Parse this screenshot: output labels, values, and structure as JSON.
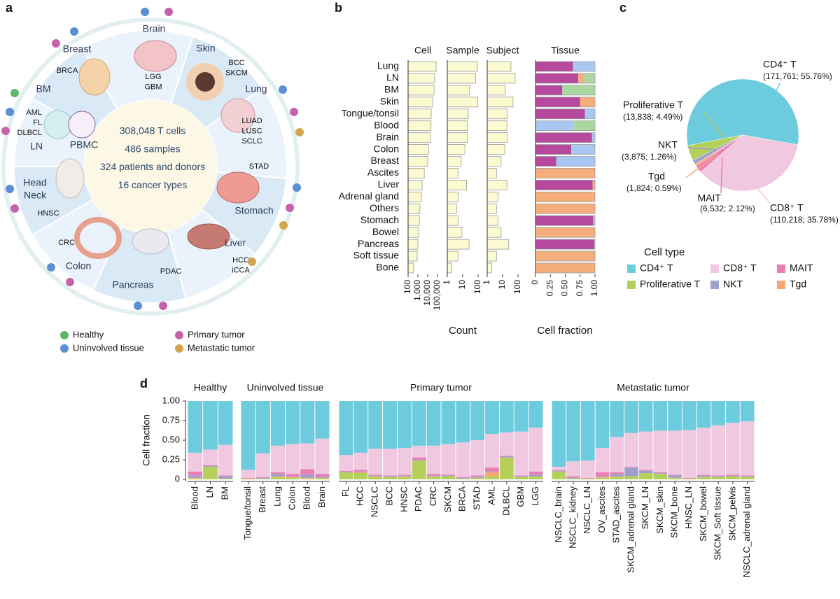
{
  "panel_a": {
    "panel_label": "a",
    "center_text": [
      "308,048 T cells",
      "486 samples",
      "324 patients and donors",
      "16 cancer types"
    ],
    "organs": [
      {
        "labels": [
          "Brain"
        ],
        "subtypes": [
          "LGG",
          "GBM"
        ]
      },
      {
        "labels": [
          "Skin"
        ],
        "subtypes": [
          "BCC",
          "SKCM"
        ]
      },
      {
        "labels": [
          "Lung"
        ],
        "subtypes": [
          "LUAD",
          "LUSC",
          "SCLC"
        ]
      },
      {
        "labels": [
          "Stomach"
        ],
        "subtypes": [
          "STAD"
        ]
      },
      {
        "labels": [
          "Liver"
        ],
        "subtypes": [
          "HCC",
          "iCCA"
        ]
      },
      {
        "labels": [
          "Pancreas"
        ],
        "subtypes": [
          "PDAC"
        ]
      },
      {
        "labels": [
          "Colon"
        ],
        "subtypes": [
          "CRC"
        ]
      },
      {
        "labels": [
          "Head",
          "Neck"
        ],
        "subtypes": [
          "HNSC"
        ]
      },
      {
        "labels": [
          "BM",
          "LN",
          "PBMC"
        ],
        "subtypes": [
          "AML",
          "FL",
          "DLBCL"
        ]
      },
      {
        "labels": [
          "Breast"
        ],
        "subtypes": [
          "BRCA"
        ]
      }
    ],
    "legend": [
      {
        "name": "Healthy",
        "color": "#5fb56a"
      },
      {
        "name": "Uninvolved tissue",
        "color": "#5b8fd4"
      },
      {
        "name": "Primary tumor",
        "color": "#c462ac"
      },
      {
        "name": "Metastatic tumor",
        "color": "#d3a550"
      }
    ]
  },
  "chart_data": [
    {
      "type": "bar",
      "panel_label": "b",
      "title": "Cell",
      "xscale": "log",
      "color": "#fcfad0",
      "categories": [
        "Lung",
        "LN",
        "BM",
        "Skin",
        "Tongue/tonsil",
        "Blood",
        "Brain",
        "Colon",
        "Breast",
        "Ascites",
        "Liver",
        "Adrenal gland",
        "Others",
        "Stomach",
        "Bowel",
        "Pancreas",
        "Soft tissue",
        "Bone"
      ],
      "values": [
        72000,
        52000,
        45000,
        32000,
        23000,
        22000,
        19000,
        12000,
        10000,
        4500,
        2700,
        2300,
        1600,
        1400,
        1200,
        1000,
        850,
        370
      ],
      "xlim": [
        100,
        100000
      ],
      "xticks": [
        100,
        {
          "value": 1000,
          "label": "1,000"
        },
        {
          "value": 10000,
          "label": "10,000"
        },
        {
          "value": 100000,
          "label": "100,000"
        }
      ]
    },
    {
      "type": "bar",
      "title": "Sample",
      "xscale": "log",
      "color": "#fcfad0",
      "xlabel": "Count",
      "values": [
        90,
        70,
        28,
        95,
        23,
        20,
        20,
        14,
        8,
        5,
        18,
        5,
        4,
        5,
        9,
        26,
        5,
        2
      ],
      "xlim": [
        1,
        100
      ],
      "xticks": [
        1,
        10,
        100
      ]
    },
    {
      "type": "bar",
      "title": "Subject",
      "xscale": "log",
      "color": "#fcfad0",
      "values": [
        35,
        65,
        15,
        48,
        20,
        19,
        20,
        14,
        8,
        4,
        19,
        5,
        4,
        5,
        8,
        25,
        4,
        2
      ],
      "xlim": [
        1,
        100
      ],
      "xticks": [
        1,
        10,
        100
      ]
    },
    {
      "type": "stacked_bar",
      "title": "Tissue",
      "xlabel": "Cell fraction",
      "xlim": [
        0,
        1
      ],
      "xticks": [
        0,
        0.25,
        {
          "value": 0.5,
          "label": "0.50"
        },
        0.75,
        {
          "value": 1,
          "label": "1.00"
        }
      ],
      "series": [
        {
          "color": "#b6489d",
          "values": [
            0.63,
            0.72,
            0.45,
            0.75,
            0.83,
            0,
            0.95,
            0.6,
            0.35,
            0,
            0.96,
            0,
            0,
            0.97,
            0,
            0.99,
            0,
            0
          ]
        },
        {
          "color": "#f5ae7b",
          "values": [
            0,
            0.1,
            0,
            0.25,
            0,
            0,
            0,
            0,
            0,
            1,
            0.04,
            1,
            1,
            0,
            1,
            0,
            1,
            1
          ]
        },
        {
          "color": "#a8c8f2",
          "values": [
            0.37,
            0,
            0,
            0,
            0.17,
            0.65,
            0.05,
            0.4,
            0.65,
            0,
            0,
            0,
            0,
            0.03,
            0,
            0.01,
            0,
            0
          ]
        },
        {
          "color": "#a9d9a1",
          "values": [
            0,
            0.18,
            0.55,
            0,
            0,
            0.35,
            0,
            0,
            0,
            0,
            0,
            0,
            0,
            0,
            0,
            0,
            0,
            0
          ]
        }
      ]
    },
    {
      "type": "pie",
      "panel_label": "c",
      "legend_title": "Cell type",
      "categories": [
        "CD4⁺ T",
        "CD8⁺ T",
        "MAIT",
        "Tgd",
        "NKT",
        "Proliferative T"
      ],
      "values": [
        55.76,
        35.78,
        2.12,
        0.59,
        1.26,
        4.49
      ],
      "value_labels": [
        "(171,761; 55.76%)",
        "(110,218; 35.78%)",
        "(6,532; 2.12%)",
        "(1,824; 0.59%)",
        "(3,875; 1.26%)",
        "(13,838; 4.49%)"
      ],
      "colors": [
        "#6ccbdc",
        "#f0c8e0",
        "#e97fb3",
        "#f7a871",
        "#9f9fcc",
        "#b5d05a"
      ]
    },
    {
      "type": "stacked_column",
      "panel_label": "d",
      "title": "Healthy",
      "ylabel": "Cell fraction",
      "ylim": [
        0,
        1
      ],
      "yticks": [
        0,
        0.25,
        {
          "value": 0.5,
          "label": "0.50"
        },
        0.75,
        {
          "value": 1,
          "label": "1.00"
        }
      ],
      "categories": [
        "Blood",
        "LN",
        "BM"
      ],
      "series": [
        {
          "color": "#b5d05a",
          "values": [
            0.01,
            0.16,
            0.01
          ]
        },
        {
          "color": "#f7a871",
          "values": [
            0.01,
            0,
            0
          ]
        },
        {
          "color": "#9f9fcc",
          "values": [
            0.03,
            0.01,
            0.03
          ]
        },
        {
          "color": "#e97fb3",
          "values": [
            0.05,
            0.01,
            0.01
          ]
        },
        {
          "color": "#f0c8e0",
          "values": [
            0.24,
            0.2,
            0.39
          ]
        },
        {
          "color": "#6ccbdc",
          "values": [
            0.66,
            0.62,
            0.56
          ]
        }
      ]
    },
    {
      "type": "stacked_column",
      "title": "Uninvolved tissue",
      "ylim": [
        0,
        1
      ],
      "categories": [
        "Tongue/tonsil",
        "Breast",
        "Lung",
        "Colon",
        "Blood",
        "Brain"
      ],
      "series": [
        {
          "color": "#b5d05a",
          "values": [
            0.01,
            0.01,
            0.03,
            0.02,
            0.01,
            0.02
          ]
        },
        {
          "color": "#f7a871",
          "values": [
            0,
            0,
            0.01,
            0.01,
            0.01,
            0
          ]
        },
        {
          "color": "#9f9fcc",
          "values": [
            0,
            0.01,
            0.03,
            0.01,
            0.04,
            0.01
          ]
        },
        {
          "color": "#e97fb3",
          "values": [
            0.01,
            0.01,
            0.02,
            0.03,
            0.07,
            0.04
          ]
        },
        {
          "color": "#f0c8e0",
          "values": [
            0.1,
            0.3,
            0.34,
            0.38,
            0.33,
            0.45
          ]
        },
        {
          "color": "#6ccbdc",
          "values": [
            0.88,
            0.67,
            0.57,
            0.55,
            0.54,
            0.48
          ]
        }
      ]
    },
    {
      "type": "stacked_column",
      "title": "Primary tumor",
      "ylim": [
        0,
        1
      ],
      "categories": [
        "FL",
        "HCC",
        "NSCLC",
        "BCC",
        "HNSC",
        "PDAC",
        "CRC",
        "SKCM",
        "BRCA",
        "STAD",
        "AML",
        "DLBCL",
        "GBM",
        "LGG"
      ],
      "series": [
        {
          "color": "#b5d05a",
          "values": [
            0.09,
            0.08,
            0.03,
            0.03,
            0.03,
            0.24,
            0.03,
            0.04,
            0.01,
            0.02,
            0.04,
            0.28,
            0.03,
            0.04
          ]
        },
        {
          "color": "#f7a871",
          "values": [
            0,
            0.01,
            0.01,
            0,
            0.01,
            0,
            0.01,
            0,
            0,
            0,
            0.05,
            0,
            0,
            0
          ]
        },
        {
          "color": "#9f9fcc",
          "values": [
            0.01,
            0.01,
            0.01,
            0.01,
            0.01,
            0.01,
            0.01,
            0.01,
            0.01,
            0.01,
            0.01,
            0.01,
            0.01,
            0.02
          ]
        },
        {
          "color": "#e97fb3",
          "values": [
            0.01,
            0.02,
            0.01,
            0.01,
            0.01,
            0.03,
            0.02,
            0.01,
            0.01,
            0.02,
            0.05,
            0.01,
            0.01,
            0.04
          ]
        },
        {
          "color": "#f0c8e0",
          "values": [
            0.2,
            0.22,
            0.33,
            0.34,
            0.34,
            0.15,
            0.36,
            0.39,
            0.44,
            0.45,
            0.43,
            0.3,
            0.56,
            0.56
          ]
        },
        {
          "color": "#6ccbdc",
          "values": [
            0.69,
            0.66,
            0.61,
            0.61,
            0.6,
            0.57,
            0.57,
            0.55,
            0.53,
            0.5,
            0.42,
            0.4,
            0.39,
            0.34
          ]
        }
      ]
    },
    {
      "type": "stacked_column",
      "title": "Metastatic tumor",
      "ylim": [
        0,
        1
      ],
      "categories": [
        "NSCLC_brain",
        "NSCLC_kidney",
        "NSCLC_LN",
        "OV_ascites",
        "STAD_ascites",
        "SKCM_adrenal gland",
        "SKCM_LN",
        "SKCM_skin",
        "SKCM_bone",
        "HNSC_LN",
        "SKCM_bowel",
        "SKCM_Soft tissue",
        "SKCM_pelvis",
        "NSCLC_adrenal gland"
      ],
      "series": [
        {
          "color": "#b5d05a",
          "values": [
            0.1,
            0.01,
            0.01,
            0.02,
            0.03,
            0.04,
            0.08,
            0.07,
            0.02,
            0.01,
            0.03,
            0.03,
            0.04,
            0.03
          ]
        },
        {
          "color": "#f7a871",
          "values": [
            0,
            0,
            0,
            0.01,
            0.01,
            0,
            0,
            0,
            0,
            0,
            0,
            0,
            0,
            0
          ]
        },
        {
          "color": "#9f9fcc",
          "values": [
            0.01,
            0.01,
            0,
            0.01,
            0.03,
            0.11,
            0.03,
            0.01,
            0.03,
            0,
            0.02,
            0.01,
            0.01,
            0.01
          ]
        },
        {
          "color": "#e97fb3",
          "values": [
            0.01,
            0.02,
            0.01,
            0.05,
            0.02,
            0.01,
            0.01,
            0.01,
            0.01,
            0.01,
            0.01,
            0.01,
            0.01,
            0.01
          ]
        },
        {
          "color": "#f0c8e0",
          "values": [
            0.04,
            0.19,
            0.22,
            0.31,
            0.45,
            0.43,
            0.49,
            0.53,
            0.56,
            0.61,
            0.6,
            0.64,
            0.66,
            0.69
          ]
        },
        {
          "color": "#6ccbdc",
          "values": [
            0.84,
            0.77,
            0.76,
            0.6,
            0.46,
            0.41,
            0.39,
            0.38,
            0.38,
            0.37,
            0.34,
            0.31,
            0.28,
            0.26
          ]
        }
      ]
    }
  ]
}
